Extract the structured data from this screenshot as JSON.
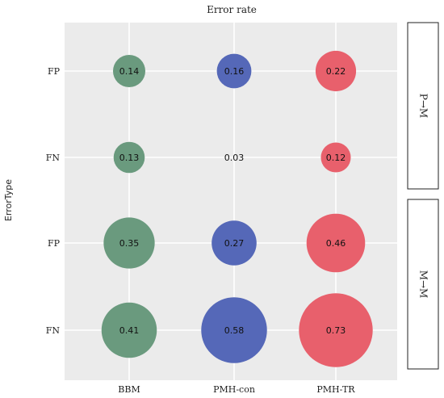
{
  "chart_data": {
    "type": "bubble",
    "title": "Error rate",
    "xlabel": "",
    "ylabel": "ErrorType",
    "categories": [
      "BBM",
      "PMH-con",
      "PMH-TR"
    ],
    "colors": {
      "BBM": "#6a9a7e",
      "PMH-con": "#5568b8",
      "PMH-TR": "#e8606c",
      "panel_bg": "#ebebeb",
      "grid": "#ffffff"
    },
    "facets": [
      {
        "strip_label": "P→M",
        "rows": [
          "FP",
          "FN"
        ],
        "values": {
          "FP": [
            0.14,
            0.16,
            0.22
          ],
          "FN": [
            0.13,
            0.03,
            0.12
          ]
        }
      },
      {
        "strip_label": "M→M",
        "rows": [
          "FP",
          "FN"
        ],
        "values": {
          "FP": [
            0.35,
            0.27,
            0.46
          ],
          "FN": [
            0.41,
            0.58,
            0.73
          ]
        }
      }
    ]
  }
}
